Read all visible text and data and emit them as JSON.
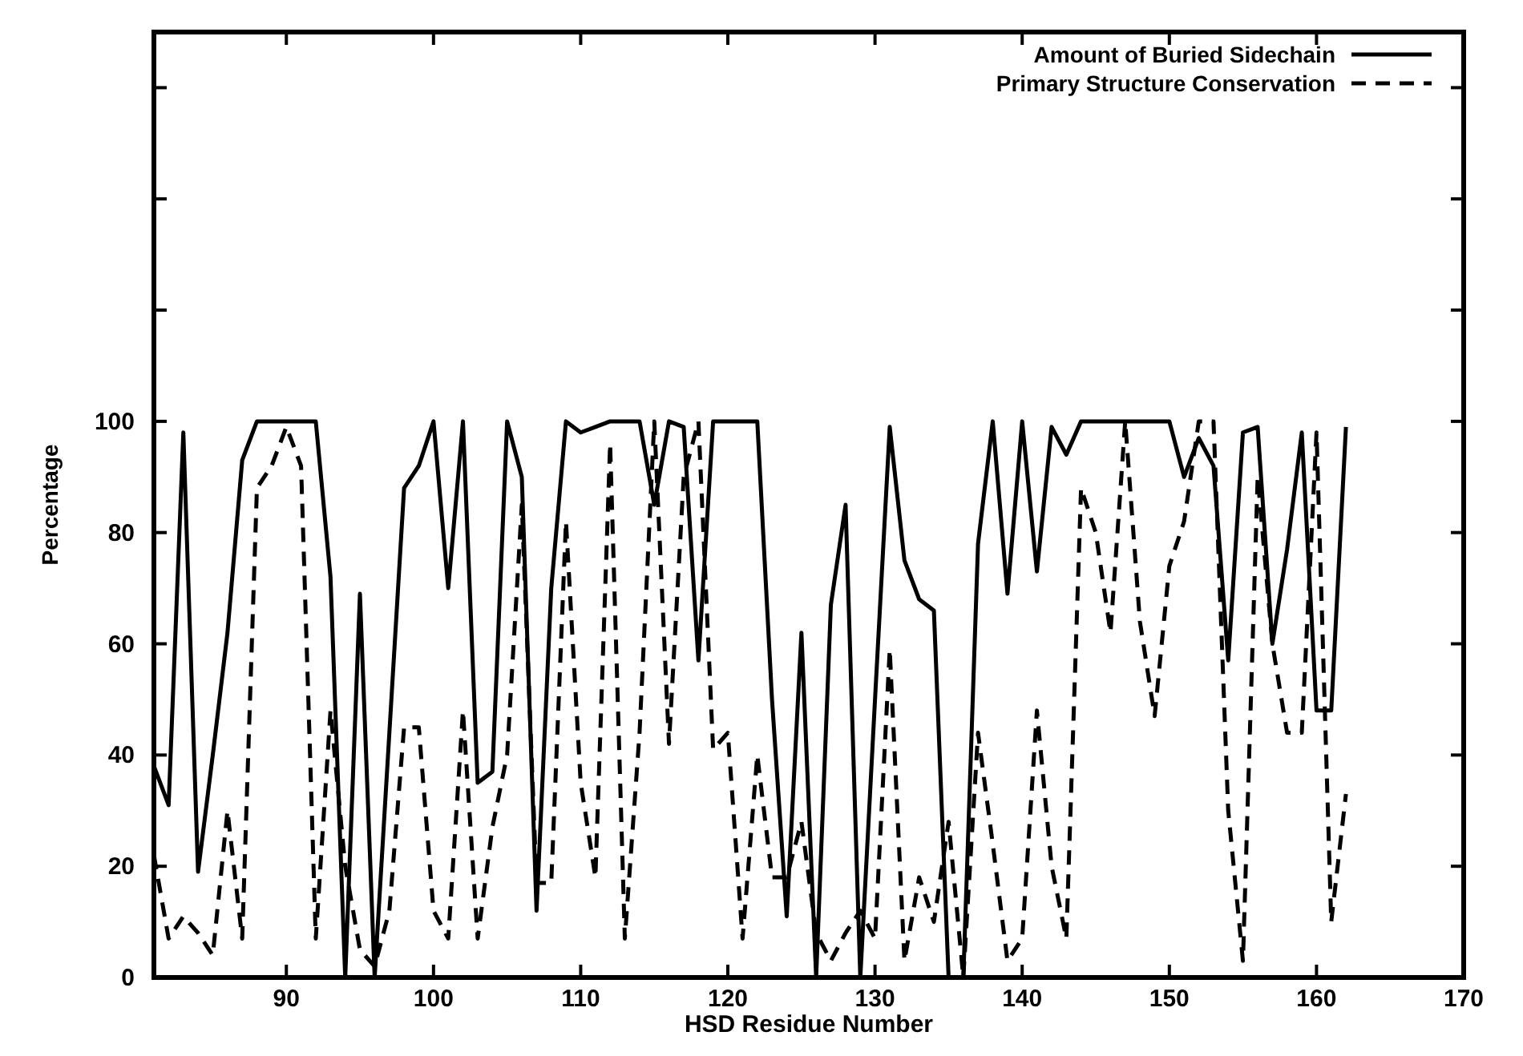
{
  "chart_data": {
    "type": "line",
    "xlabel": "HSD Residue Number",
    "ylabel": "Percentage",
    "xlim": [
      81,
      170
    ],
    "xticks": [
      90,
      100,
      110,
      120,
      130,
      140,
      150,
      160,
      170
    ],
    "ylim": [
      0,
      170
    ],
    "yticks": [
      0,
      20,
      40,
      60,
      80,
      100,
      {
        "value": 120,
        "label": null
      },
      {
        "value": 140,
        "label": null
      },
      {
        "value": 160,
        "label": null
      }
    ],
    "x": [
      81,
      82,
      83,
      84,
      85,
      86,
      87,
      88,
      89,
      90,
      91,
      92,
      93,
      94,
      95,
      96,
      97,
      98,
      99,
      100,
      101,
      102,
      103,
      104,
      105,
      106,
      107,
      108,
      109,
      110,
      111,
      112,
      113,
      114,
      115,
      116,
      117,
      118,
      119,
      120,
      121,
      122,
      123,
      124,
      125,
      126,
      127,
      128,
      129,
      130,
      131,
      132,
      133,
      134,
      135,
      136,
      137,
      138,
      139,
      140,
      141,
      142,
      143,
      144,
      145,
      146,
      147,
      148,
      149,
      150,
      151,
      152,
      153,
      154,
      155,
      156,
      157,
      158,
      159,
      160,
      161,
      162
    ],
    "series": [
      {
        "name": "Amount of Buried Sidechain",
        "color": "#000000",
        "line_style": "solid",
        "values": [
          38,
          31,
          98,
          19,
          40,
          62,
          93,
          100,
          100,
          100,
          100,
          100,
          72,
          0,
          69,
          0,
          44,
          88,
          92,
          100,
          70,
          100,
          35,
          37,
          100,
          90,
          12,
          70,
          100,
          98,
          99,
          100,
          100,
          100,
          85,
          100,
          99,
          57,
          100,
          100,
          100,
          100,
          50,
          11,
          62,
          0,
          67,
          85,
          0,
          50,
          99,
          75,
          68,
          66,
          0,
          0,
          78,
          100,
          69,
          100,
          73,
          99,
          94,
          100,
          100,
          100,
          100,
          100,
          100,
          100,
          90,
          97,
          92,
          57,
          98,
          99,
          60,
          77,
          98,
          48,
          48,
          99
        ]
      },
      {
        "name": "Primary Structure Conservation",
        "color": "#000000",
        "line_style": "dashed",
        "values": [
          22,
          7,
          11,
          8,
          4,
          30,
          7,
          88,
          92,
          99,
          92,
          7,
          48,
          20,
          5,
          2,
          12,
          45,
          45,
          12,
          7,
          48,
          7,
          27,
          40,
          85,
          17,
          17,
          82,
          35,
          18,
          96,
          7,
          44,
          100,
          42,
          90,
          100,
          41,
          44,
          7,
          40,
          18,
          18,
          28,
          8,
          3,
          8,
          12,
          7,
          59,
          3,
          18,
          10,
          28,
          0,
          44,
          24,
          3,
          7,
          48,
          20,
          7,
          88,
          80,
          62,
          100,
          64,
          47,
          74,
          82,
          100,
          100,
          30,
          3,
          90,
          60,
          44,
          44,
          98,
          10,
          33
        ]
      }
    ],
    "legend": "top right",
    "grid": false,
    "marker": "none"
  }
}
